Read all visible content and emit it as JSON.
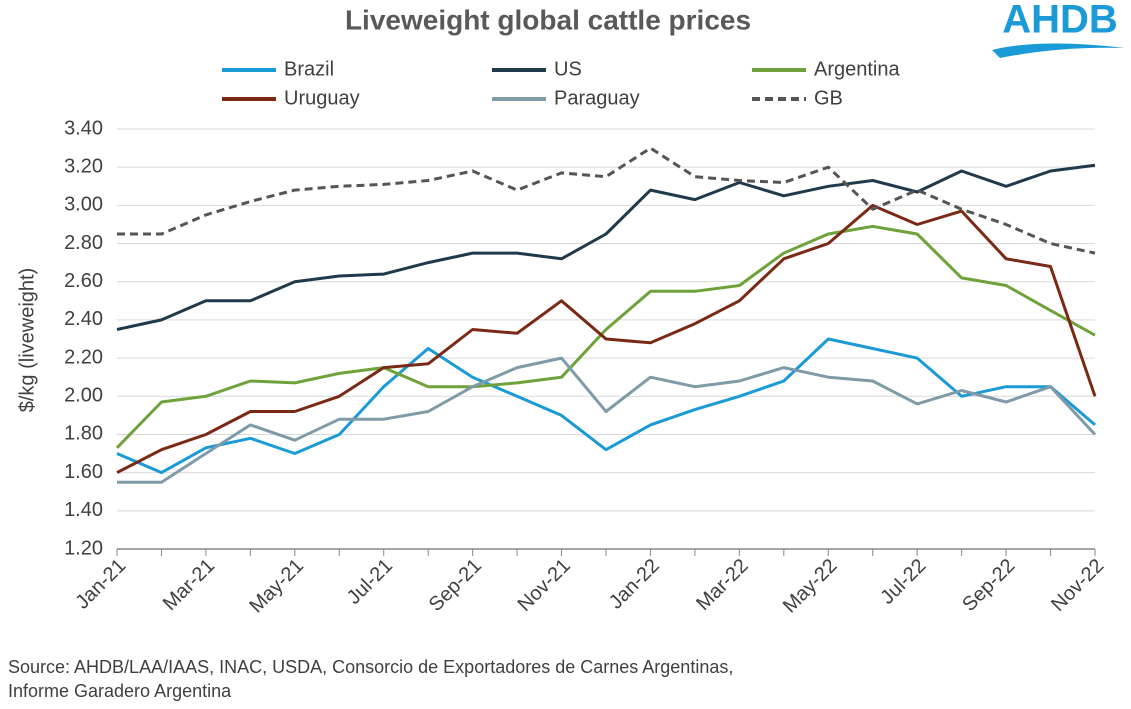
{
  "chart_data": {
    "type": "line",
    "title": "Liveweight global cattle prices",
    "logo": "AHDB",
    "y_label": "$/kg (liveweight)",
    "source": [
      "Source: AHDB/LAA/IAAS, INAC, USDA, Consorcio de Exportadores de Carnes Argentinas,",
      "Informe Garadero Argentina"
    ],
    "categories": [
      "Jan-21",
      null,
      "Mar-21",
      null,
      "May-21",
      null,
      "Jul-21",
      null,
      "Sep-21",
      null,
      "Nov-21",
      null,
      "Jan-22",
      null,
      "Mar-22",
      null,
      "May-22",
      null,
      "Jul-22",
      null,
      "Sep-22",
      null,
      "Nov-22"
    ],
    "ylim": [
      1.2,
      3.4
    ],
    "yticks": [
      {
        "value": 1.2,
        "label": "1.20"
      },
      {
        "value": 1.4,
        "label": "1.40"
      },
      {
        "value": 1.6,
        "label": "1.60"
      },
      {
        "value": 1.8,
        "label": "1.80"
      },
      {
        "value": 2.0,
        "label": "2.00"
      },
      {
        "value": 2.2,
        "label": "2.20"
      },
      {
        "value": 2.4,
        "label": "2.40"
      },
      {
        "value": 2.6,
        "label": "2.60"
      },
      {
        "value": 2.8,
        "label": "2.80"
      },
      {
        "value": 3.0,
        "label": "3.00"
      },
      {
        "value": 3.2,
        "label": "3.20"
      },
      {
        "value": 3.4,
        "label": "3.40"
      }
    ],
    "grid": true,
    "series": [
      {
        "name": "Brazil",
        "color": "#1a9ad6",
        "style": "solid",
        "values": [
          1.7,
          1.6,
          1.73,
          1.78,
          1.7,
          1.8,
          2.05,
          2.25,
          2.1,
          2.0,
          1.9,
          1.72,
          1.85,
          1.93,
          2.0,
          2.08,
          2.3,
          2.25,
          2.2,
          2.0,
          2.05,
          2.05,
          1.85
        ]
      },
      {
        "name": "US",
        "color": "#1f3a4a",
        "style": "solid",
        "values": [
          2.35,
          2.4,
          2.5,
          2.5,
          2.6,
          2.63,
          2.64,
          2.7,
          2.75,
          2.75,
          2.72,
          2.85,
          3.08,
          3.03,
          3.12,
          3.05,
          3.1,
          3.13,
          3.07,
          3.18,
          3.1,
          3.18,
          3.21
        ]
      },
      {
        "name": "Argentina",
        "color": "#6fa23a",
        "style": "solid",
        "values": [
          1.73,
          1.97,
          2.0,
          2.08,
          2.07,
          2.12,
          2.15,
          2.05,
          2.05,
          2.07,
          2.1,
          2.35,
          2.55,
          2.55,
          2.58,
          2.75,
          2.85,
          2.89,
          2.85,
          2.62,
          2.58,
          2.45,
          2.32
        ]
      },
      {
        "name": "Uruguay",
        "color": "#7a2a14",
        "style": "solid",
        "values": [
          1.6,
          1.72,
          1.8,
          1.92,
          1.92,
          2.0,
          2.15,
          2.17,
          2.35,
          2.33,
          2.5,
          2.3,
          2.28,
          2.38,
          2.5,
          2.72,
          2.8,
          3.0,
          2.9,
          2.97,
          2.72,
          2.68,
          2.0
        ]
      },
      {
        "name": "Paraguay",
        "color": "#7f9ba8",
        "style": "solid",
        "values": [
          1.55,
          1.55,
          1.7,
          1.85,
          1.77,
          1.88,
          1.88,
          1.92,
          2.05,
          2.15,
          2.2,
          1.92,
          2.1,
          2.05,
          2.08,
          2.15,
          2.1,
          2.08,
          1.96,
          2.03,
          1.97,
          2.05,
          1.8
        ]
      },
      {
        "name": "GB",
        "color": "#555555",
        "style": "dashed",
        "values": [
          2.85,
          2.85,
          2.95,
          3.02,
          3.08,
          3.1,
          3.11,
          3.13,
          3.18,
          3.08,
          3.17,
          3.15,
          3.3,
          3.15,
          3.13,
          3.12,
          3.2,
          2.98,
          3.08,
          2.98,
          2.9,
          2.8,
          2.75
        ]
      }
    ]
  }
}
